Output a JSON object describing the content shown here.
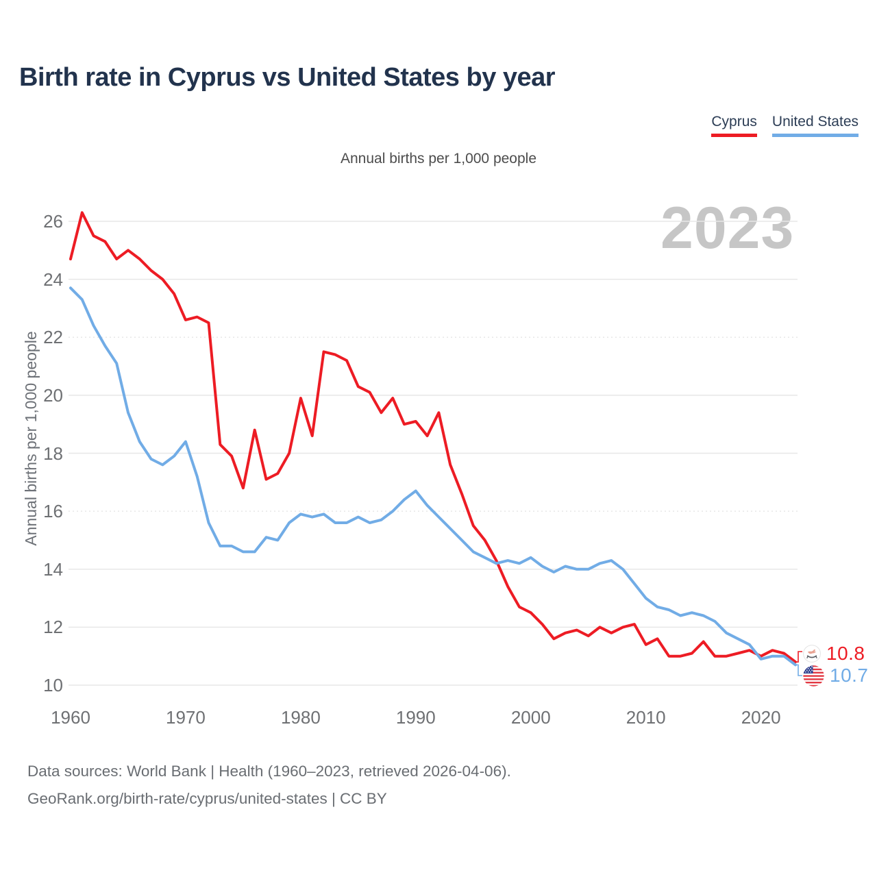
{
  "header": {
    "title": "Birth rate in Cyprus vs United States by year"
  },
  "legend": {
    "cyprus_label": "Cyprus",
    "us_label": "United States"
  },
  "chart": {
    "subtitle": "Annual births per 1,000 people",
    "y_axis_title": "Annual births per 1,000 people",
    "watermark": "2023"
  },
  "end_labels": {
    "cyprus_value": "10.8",
    "us_value": "10.7"
  },
  "footer": {
    "line1": "Data sources: World Bank | Health (1960–2023, retrieved 2026-04-06).",
    "line2": "GeoRank.org/birth-rate/cyprus/united-states | CC BY"
  },
  "chart_data": {
    "type": "line",
    "title": "Birth rate in Cyprus vs United States by year",
    "subtitle": "Annual births per 1,000 people",
    "xlabel": "",
    "ylabel": "Annual births per 1,000 people",
    "grid": "horizontal",
    "legend_position": "top-right",
    "xlim": [
      1960,
      2023
    ],
    "ylim": [
      10,
      26.5
    ],
    "xticks": [
      1960,
      1970,
      1980,
      1990,
      2000,
      2010,
      2020
    ],
    "yticks": [
      10,
      12,
      14,
      16,
      18,
      20,
      22,
      24,
      26
    ],
    "dotted_gridlines": [
      16,
      22
    ],
    "x": [
      1960,
      1961,
      1962,
      1963,
      1964,
      1965,
      1966,
      1967,
      1968,
      1969,
      1970,
      1971,
      1972,
      1973,
      1974,
      1975,
      1976,
      1977,
      1978,
      1979,
      1980,
      1981,
      1982,
      1983,
      1984,
      1985,
      1986,
      1987,
      1988,
      1989,
      1990,
      1991,
      1992,
      1993,
      1994,
      1995,
      1996,
      1997,
      1998,
      1999,
      2000,
      2001,
      2002,
      2003,
      2004,
      2005,
      2006,
      2007,
      2008,
      2009,
      2010,
      2011,
      2012,
      2013,
      2014,
      2015,
      2016,
      2017,
      2018,
      2019,
      2020,
      2021,
      2022,
      2023
    ],
    "series": [
      {
        "name": "Cyprus",
        "color": "#ed1c24",
        "values": [
          24.7,
          26.3,
          25.5,
          25.3,
          24.7,
          25.0,
          24.7,
          24.3,
          24.0,
          23.5,
          22.6,
          22.7,
          22.5,
          18.3,
          17.9,
          16.8,
          18.8,
          17.1,
          17.3,
          18.0,
          19.9,
          18.6,
          21.5,
          21.4,
          21.2,
          20.3,
          20.1,
          19.4,
          19.9,
          19.0,
          19.1,
          18.6,
          19.4,
          17.6,
          16.6,
          15.5,
          15.0,
          14.3,
          13.4,
          12.7,
          12.5,
          12.1,
          11.6,
          11.8,
          11.9,
          11.7,
          12.0,
          11.8,
          12.0,
          12.1,
          11.4,
          11.6,
          11.0,
          11.0,
          11.1,
          11.5,
          11.0,
          11.0,
          11.1,
          11.2,
          11.0,
          11.2,
          11.1,
          10.8
        ]
      },
      {
        "name": "United States",
        "color": "#71ace6",
        "values": [
          23.7,
          23.3,
          22.4,
          21.7,
          21.1,
          19.4,
          18.4,
          17.8,
          17.6,
          17.9,
          18.4,
          17.2,
          15.6,
          14.8,
          14.8,
          14.6,
          14.6,
          15.1,
          15.0,
          15.6,
          15.9,
          15.8,
          15.9,
          15.6,
          15.6,
          15.8,
          15.6,
          15.7,
          16.0,
          16.4,
          16.7,
          16.2,
          15.8,
          15.4,
          15.0,
          14.6,
          14.4,
          14.2,
          14.3,
          14.2,
          14.4,
          14.1,
          13.9,
          14.1,
          14.0,
          14.0,
          14.2,
          14.3,
          14.0,
          13.5,
          13.0,
          12.7,
          12.6,
          12.4,
          12.5,
          12.4,
          12.2,
          11.8,
          11.6,
          11.4,
          10.9,
          11.0,
          11.0,
          10.7
        ]
      }
    ],
    "last_value_labels": {
      "Cyprus": 10.8,
      "United States": 10.7
    }
  }
}
